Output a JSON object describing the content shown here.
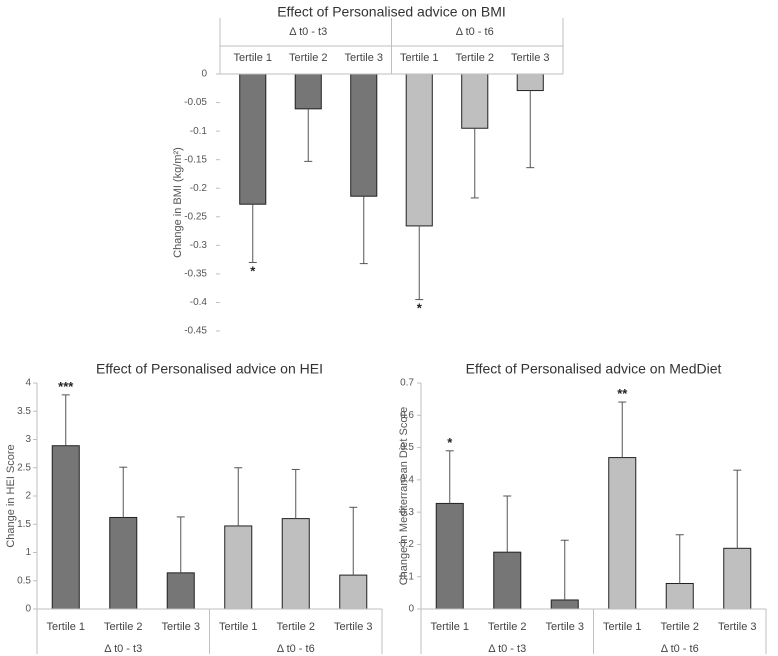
{
  "chart_data": [
    {
      "type": "bar",
      "title": "Effect of Personalised advice on BMI",
      "ylabel": "Change in BMI (kg/m²)",
      "xlabel": "",
      "ylim": [
        -0.45,
        0
      ],
      "yticks": [
        "0",
        "-0.05",
        "-0.1",
        "-0.15",
        "-0.2",
        "-0.25",
        "-0.3",
        "-0.35",
        "-0.4",
        "-0.45"
      ],
      "ytick_values": [
        0,
        -0.05,
        -0.1,
        -0.15,
        -0.2,
        -0.25,
        -0.3,
        -0.35,
        -0.4,
        -0.45
      ],
      "groups": [
        "Δ t0 - t3",
        "Δ t0 - t6"
      ],
      "categories": [
        "Tertile 1",
        "Tertile 2",
        "Tertile 3",
        "Tertile 1",
        "Tertile 2",
        "Tertile 3"
      ],
      "values": [
        -0.228,
        -0.061,
        -0.214,
        -0.266,
        -0.095,
        -0.029
      ],
      "errors": [
        0.102,
        0.092,
        0.118,
        0.129,
        0.122,
        0.135
      ],
      "significance": [
        "*",
        "",
        "",
        "*",
        "",
        ""
      ],
      "colors": [
        "#767676",
        "#767676",
        "#767676",
        "#bfbfbf",
        "#bfbfbf",
        "#bfbfbf"
      ],
      "grid": false
    },
    {
      "type": "bar",
      "title": "Effect of Personalised advice on HEI",
      "ylabel": "Change in HEI Score",
      "xlabel": "",
      "ylim": [
        0,
        4
      ],
      "yticks": [
        "0",
        "0.5",
        "1",
        "1.5",
        "2",
        "2.5",
        "3",
        "3.5",
        "4"
      ],
      "ytick_values": [
        0,
        0.5,
        1,
        1.5,
        2,
        2.5,
        3,
        3.5,
        4
      ],
      "groups": [
        "Δ t0 - t3",
        "Δ t0 - t6"
      ],
      "categories": [
        "Tertile 1",
        "Tertile 2",
        "Tertile 3",
        "Tertile 1",
        "Tertile 2",
        "Tertile 3"
      ],
      "values": [
        2.89,
        1.62,
        0.64,
        1.47,
        1.6,
        0.6
      ],
      "errors": [
        0.9,
        0.89,
        0.99,
        1.03,
        0.87,
        1.2
      ],
      "significance": [
        "***",
        "",
        "",
        "",
        "",
        ""
      ],
      "colors": [
        "#767676",
        "#767676",
        "#767676",
        "#bfbfbf",
        "#bfbfbf",
        "#bfbfbf"
      ],
      "grid": false
    },
    {
      "type": "bar",
      "title": "Effect of Personalised advice on MedDiet",
      "ylabel": "Change in Mediterranean Diet Score",
      "xlabel": "",
      "ylim": [
        0,
        0.7
      ],
      "yticks": [
        "0",
        "0.1",
        "0.2",
        "0.3",
        "0.4",
        "0.5",
        "0.6",
        "0.7"
      ],
      "ytick_values": [
        0,
        0.1,
        0.2,
        0.3,
        0.4,
        0.5,
        0.6,
        0.7
      ],
      "groups": [
        "Δ t0 - t3",
        "Δ t0 - t6"
      ],
      "categories": [
        "Tertile 1",
        "Tertile 2",
        "Tertile 3",
        "Tertile 1",
        "Tertile 2",
        "Tertile 3"
      ],
      "values": [
        0.327,
        0.176,
        0.028,
        0.469,
        0.079,
        0.188
      ],
      "errors": [
        0.163,
        0.174,
        0.185,
        0.172,
        0.151,
        0.242
      ],
      "significance": [
        "*",
        "",
        "",
        "**",
        "",
        ""
      ],
      "colors": [
        "#767676",
        "#767676",
        "#767676",
        "#bfbfbf",
        "#bfbfbf",
        "#bfbfbf"
      ],
      "grid": false
    }
  ]
}
